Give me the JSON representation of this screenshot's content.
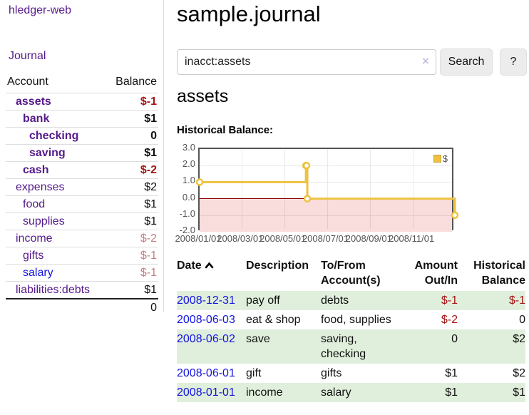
{
  "colors": {
    "purple_link": "#551a8b",
    "blue_link": "#1414dd",
    "negative_strong": "#a31515",
    "negative_soft": "#c47e7e",
    "row_stripe_green": "#e0efdc",
    "chart_line_gold": "#edc240",
    "chart_negative_pink": "#f9dcdc",
    "chart_zero_line": "#8b0000"
  },
  "app": {
    "brand": "hledger-web",
    "nav_journal": "Journal"
  },
  "sidebar": {
    "table": {
      "col_account": "Account",
      "col_balance": "Balance",
      "rows": [
        {
          "name": "assets",
          "balance": "$-1",
          "depth": 1,
          "bold": true,
          "name_color": "purple",
          "balance_color": "negative-strong"
        },
        {
          "name": "bank",
          "balance": "$1",
          "depth": 2,
          "bold": true,
          "name_color": "purple",
          "balance_color": "normal"
        },
        {
          "name": "checking",
          "balance": "0",
          "depth": 3,
          "bold": true,
          "name_color": "purple",
          "balance_color": "normal"
        },
        {
          "name": "saving",
          "balance": "$1",
          "depth": 3,
          "bold": true,
          "name_color": "purple",
          "balance_color": "normal"
        },
        {
          "name": "cash",
          "balance": "$-2",
          "depth": 2,
          "bold": true,
          "name_color": "purple",
          "balance_color": "negative-strong"
        },
        {
          "name": "expenses",
          "balance": "$2",
          "depth": 1,
          "bold": false,
          "name_color": "purple",
          "balance_color": "normal"
        },
        {
          "name": "food",
          "balance": "$1",
          "depth": 2,
          "bold": false,
          "name_color": "purple",
          "balance_color": "normal"
        },
        {
          "name": "supplies",
          "balance": "$1",
          "depth": 2,
          "bold": false,
          "name_color": "purple",
          "balance_color": "normal"
        },
        {
          "name": "income",
          "balance": "$-2",
          "depth": 1,
          "bold": false,
          "name_color": "purple",
          "balance_color": "negative-soft"
        },
        {
          "name": "gifts",
          "balance": "$-1",
          "depth": 2,
          "bold": false,
          "name_color": "purple",
          "balance_color": "negative-soft"
        },
        {
          "name": "salary",
          "balance": "$-1",
          "depth": 2,
          "bold": false,
          "name_color": "blue",
          "balance_color": "negative-soft"
        },
        {
          "name": "liabilities:debts",
          "balance": "$1",
          "depth": 1,
          "bold": false,
          "name_color": "purple",
          "balance_color": "normal"
        }
      ],
      "total": "0"
    }
  },
  "main": {
    "title": "sample.journal",
    "search": {
      "value": "inacct:assets",
      "clear_icon": "×",
      "button_label": "Search",
      "help_label": "?"
    },
    "account_heading": "assets",
    "chart_label": "Historical Balance:",
    "register": {
      "headers": {
        "date": "Date",
        "description": "Description",
        "accounts": "To/From Account(s)",
        "amount": "Amount Out/In",
        "balance": "Historical Balance"
      },
      "sort": {
        "column": "date",
        "direction": "ascending"
      },
      "rows": [
        {
          "date": "2008-12-31",
          "description": "pay off",
          "accounts": "debts",
          "amount": "$-1",
          "amount_color": "negative",
          "balance": "$-1",
          "balance_color": "negative"
        },
        {
          "date": "2008-06-03",
          "description": "eat & shop",
          "accounts": "food, supplies",
          "amount": "$-2",
          "amount_color": "negative",
          "balance": "0",
          "balance_color": "normal"
        },
        {
          "date": "2008-06-02",
          "description": "save",
          "accounts": "saving, checking",
          "amount": "0",
          "amount_color": "normal",
          "balance": "$2",
          "balance_color": "normal"
        },
        {
          "date": "2008-06-01",
          "description": "gift",
          "accounts": "gifts",
          "amount": "$1",
          "amount_color": "normal",
          "balance": "$2",
          "balance_color": "normal"
        },
        {
          "date": "2008-01-01",
          "description": "income",
          "accounts": "salary",
          "amount": "$1",
          "amount_color": "normal",
          "balance": "$1",
          "balance_color": "normal"
        }
      ]
    }
  },
  "chart_data": {
    "type": "line",
    "style": "steps",
    "title": "Historical Balance:",
    "series": [
      {
        "name": "$",
        "color": "#edc240",
        "points": [
          [
            "2008-01-01",
            1.0
          ],
          [
            "2008-06-01",
            2.0
          ],
          [
            "2008-06-02",
            2.0
          ],
          [
            "2008-06-03",
            0.0
          ],
          [
            "2008-12-31",
            -1.0
          ]
        ]
      }
    ],
    "xlim": [
      "2008-01-01",
      "2008-12-31"
    ],
    "ylim": [
      -2.0,
      3.0
    ],
    "yticks": [
      "3.0",
      "2.0",
      "1.0",
      "0.0",
      "-1.0",
      "-2.0"
    ],
    "xticks": [
      "2008/01/01",
      "2008/03/01",
      "2008/05/01",
      "2008/07/01",
      "2008/09/01",
      "2008/11/01"
    ],
    "legend_position": "top-right",
    "grid": true,
    "negative_region_shaded": true
  }
}
